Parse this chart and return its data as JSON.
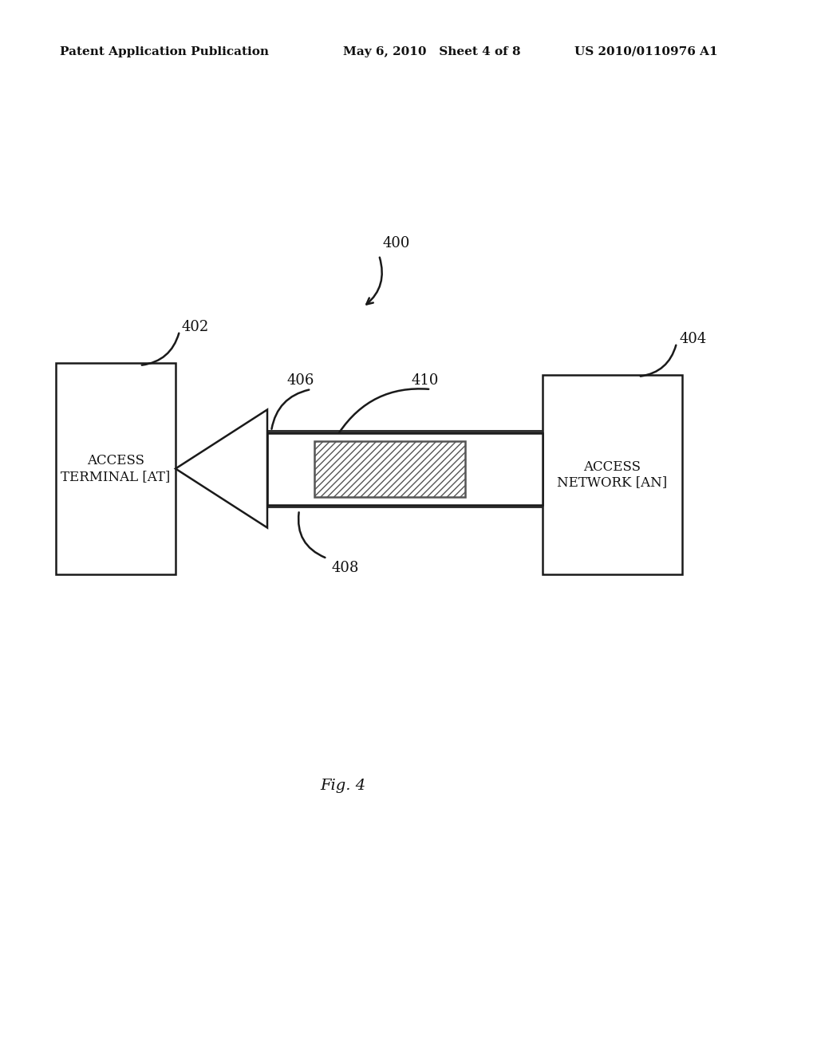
{
  "bg_color": "#ffffff",
  "header_left": "Patent Application Publication",
  "header_mid": "May 6, 2010   Sheet 4 of 8",
  "header_right": "US 2010/0110976 A1",
  "label_400": "400",
  "label_402": "402",
  "label_404": "404",
  "label_406": "406",
  "label_408": "408",
  "label_410": "410",
  "text_at": "ACCESS\nTERMINAL [AT]",
  "text_an": "ACCESS\nNETWORK [AN]",
  "fig_label": "Fig. 4",
  "line_color": "#1a1a1a"
}
